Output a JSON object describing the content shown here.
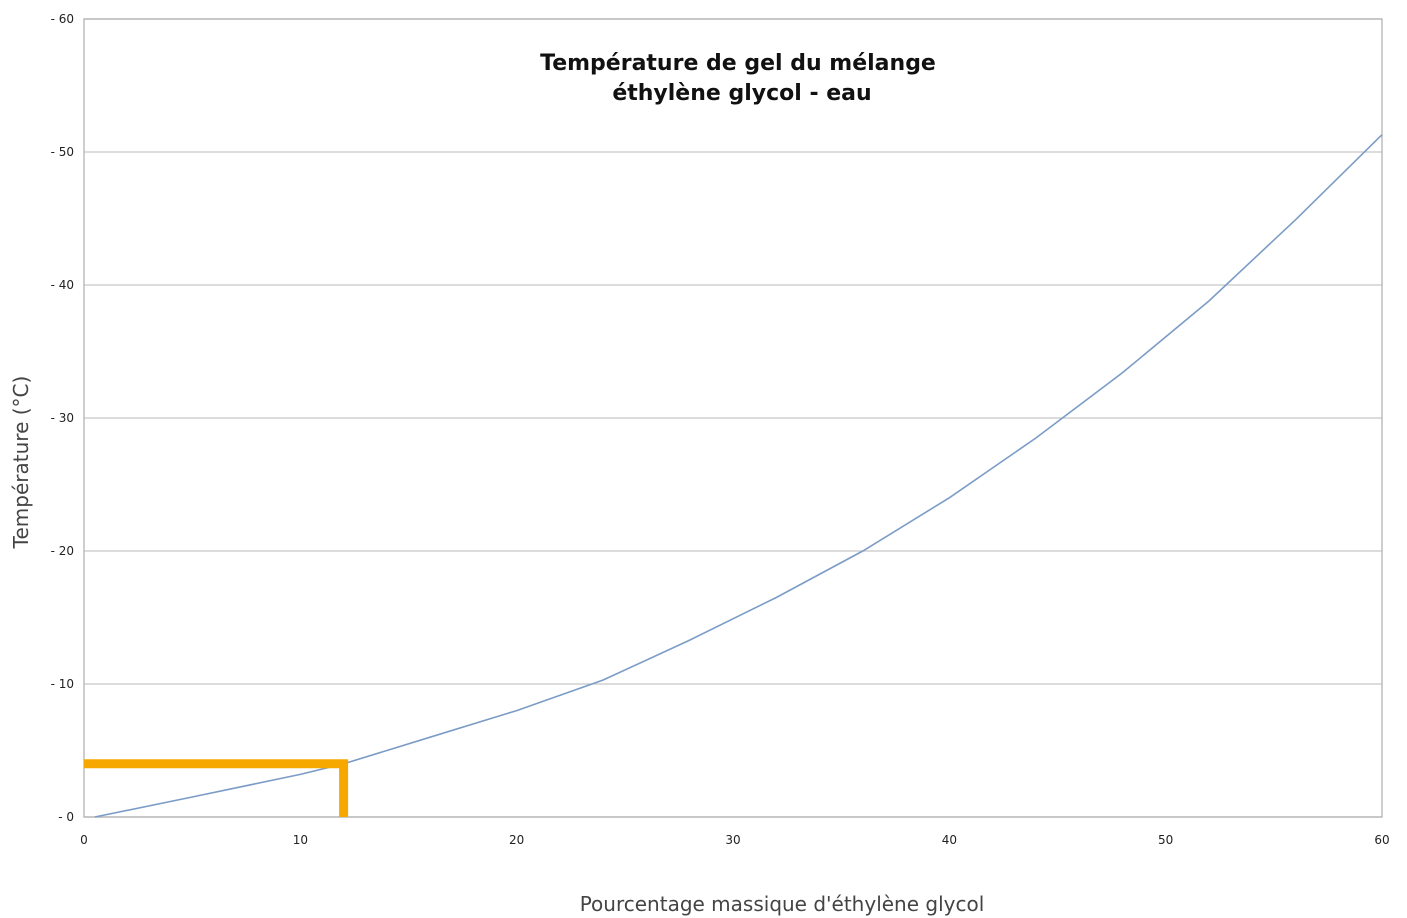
{
  "chart_data": {
    "type": "line",
    "title_lines": [
      "Température de gel du mélange",
      "éthylène glycol - eau"
    ],
    "xlabel": "Pourcentage massique d'éthylène glycol",
    "ylabel": "Température (°C)",
    "xlim": [
      0,
      60
    ],
    "ylim": [
      0,
      60
    ],
    "x_ticks": [
      "0",
      "10",
      "20",
      "30",
      "40",
      "50",
      "60"
    ],
    "y_ticks": [
      "- 0",
      "- 10",
      "- 20",
      "- 30",
      "- 40",
      "- 50",
      "- 60"
    ],
    "grid": true,
    "series": [
      {
        "color": "#7b9cc6",
        "x": [
          0.5,
          5,
          10,
          12,
          16,
          20,
          24,
          28,
          32,
          36,
          40,
          44,
          48,
          52,
          56,
          60
        ],
        "y": [
          0,
          1.5,
          3.2,
          4.0,
          6.0,
          8.0,
          10.3,
          13.3,
          16.5,
          20.0,
          24.0,
          28.5,
          33.4,
          38.8,
          44.9,
          51.3
        ]
      }
    ],
    "annotation": {
      "color": "#f7a800",
      "x": 12,
      "y": 4
    }
  }
}
